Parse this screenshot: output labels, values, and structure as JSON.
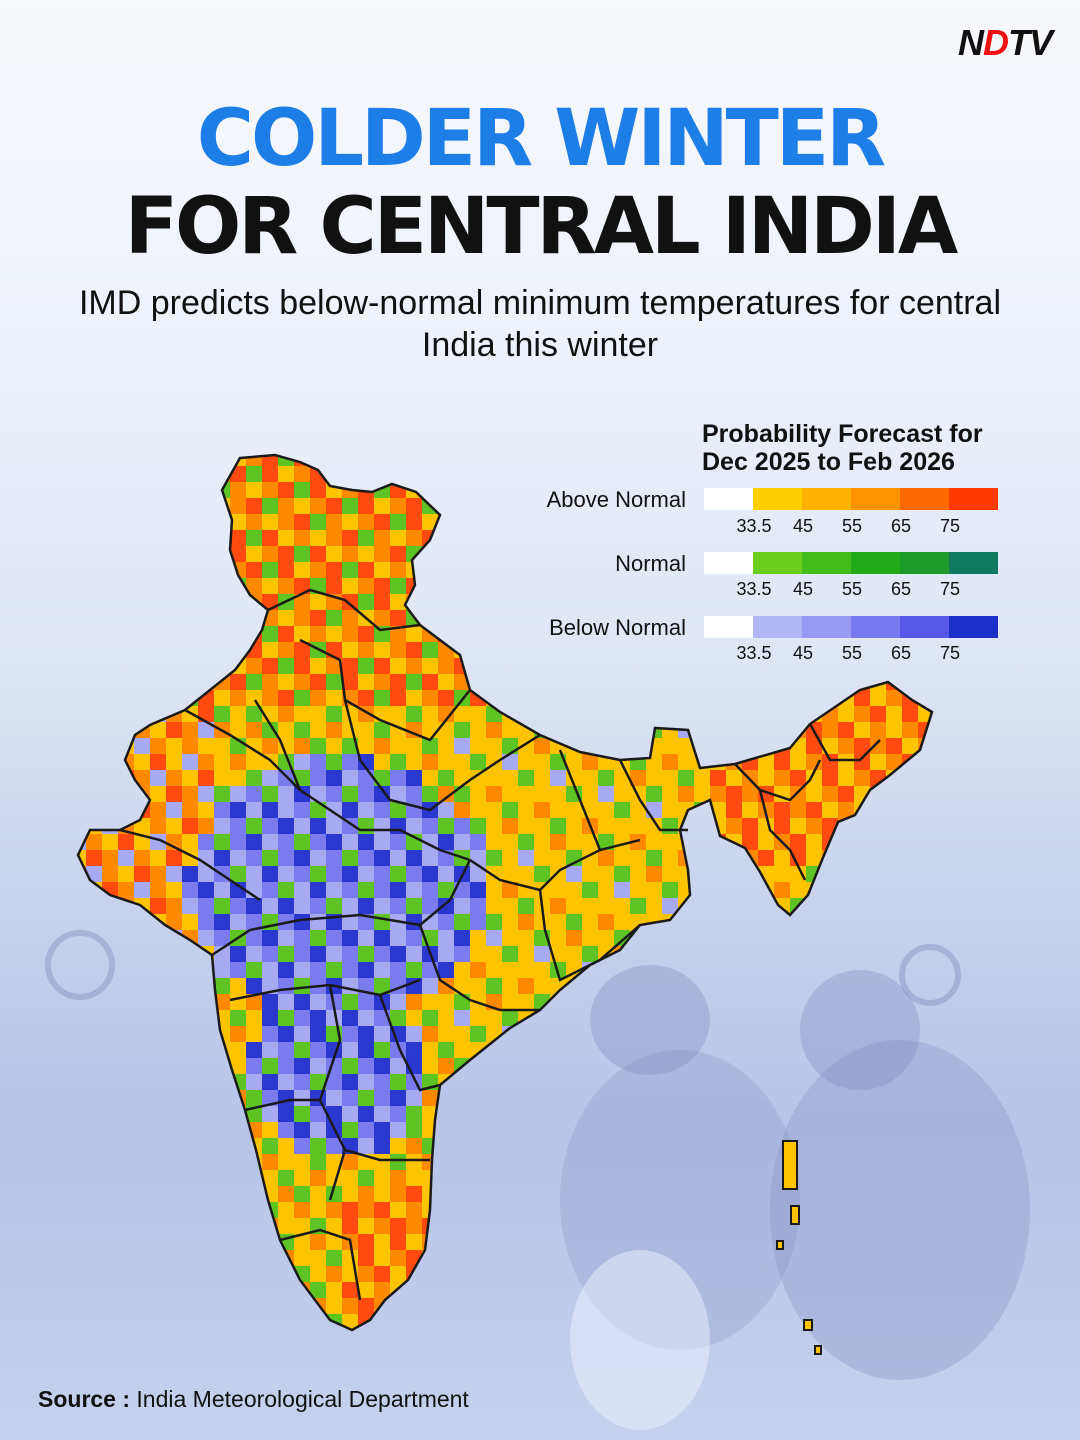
{
  "brand": {
    "logo_prefix": "N",
    "logo_dot": "D",
    "logo_suffix": "TV"
  },
  "headline": {
    "line1": "COLDER WINTER",
    "line2": "FOR CENTRAL INDIA"
  },
  "subtitle": "IMD predicts below-normal minimum temperatures for central India this winter",
  "legend": {
    "title_line1": "Probability Forecast for",
    "title_line2": "Dec 2025 to Feb 2026",
    "categories": [
      {
        "label": "Above Normal",
        "colors": [
          "#ffffff",
          "#ffd000",
          "#ffb300",
          "#ff9300",
          "#ff6a00",
          "#ff3a00"
        ]
      },
      {
        "label": "Normal",
        "colors": [
          "#ffffff",
          "#6ccf20",
          "#43bd1c",
          "#22aa18",
          "#1c9a2a",
          "#107a5e"
        ]
      },
      {
        "label": "Below Normal",
        "colors": [
          "#ffffff",
          "#b3b6f5",
          "#9899f2",
          "#7678ee",
          "#5557e6",
          "#1b2ec5"
        ]
      }
    ],
    "ticks": [
      "33.5",
      "45",
      "55",
      "65",
      "75"
    ]
  },
  "map_colors": {
    "border": "#1a1a1a",
    "above": "#ffc400",
    "above_high": "#ff8a00",
    "above_max": "#ff4a10",
    "normal": "#5ec423",
    "below": "#a7a9f1",
    "below_mid": "#7a7cee",
    "below_high": "#2a38cf"
  },
  "source": {
    "label": "Source :",
    "text": "India Meteorological Department"
  }
}
